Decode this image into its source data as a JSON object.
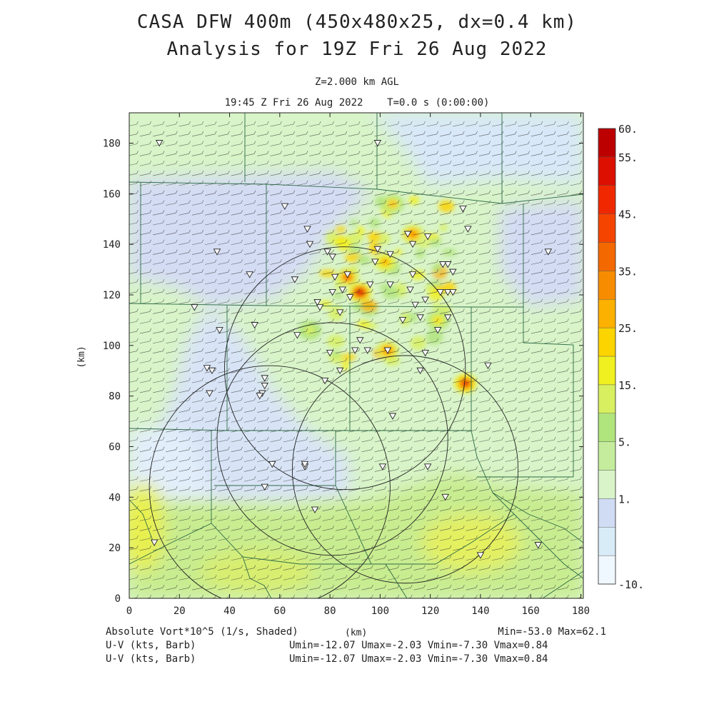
{
  "header": {
    "title_line1": "CASA DFW 400m (450x480x25, dx=0.4 km)",
    "title_line2": "Analysis for 19Z Fri 26 Aug 2022",
    "level": "Z=2.000 km AGL",
    "valid_time": "19:45 Z Fri 26 Aug 2022    T=0.0 s (0:00:00)"
  },
  "axes": {
    "x_ticks": [
      "0",
      "20",
      "40",
      "60",
      "80",
      "100",
      "120",
      "140",
      "160",
      "180"
    ],
    "y_ticks": [
      "0",
      "20",
      "40",
      "60",
      "80",
      "100",
      "120",
      "140",
      "160",
      "180"
    ],
    "x_label": "(km)",
    "y_label": "(km)",
    "x_range_km": [
      0,
      181
    ],
    "y_range_km": [
      0,
      192
    ]
  },
  "colorbar": {
    "labels": [
      "60.",
      "55.",
      "45.",
      "35.",
      "25.",
      "15.",
      "5.",
      "1.",
      "-10."
    ],
    "colors": [
      "#f0f8ff",
      "#d8ecf8",
      "#d0dcf4",
      "#d8f4c8",
      "#c4ec9c",
      "#b0e47c",
      "#d8f060",
      "#f0f020",
      "#fcd400",
      "#fcb000",
      "#f88c00",
      "#f46800",
      "#f44400",
      "#f02800",
      "#dc1000",
      "#bc0000"
    ]
  },
  "footer": {
    "field_label": "Absolute Vort*10^5 (1/s, Shaded)",
    "km_label": "(km)",
    "minmax": "Min=-53.0 Max=62.1",
    "uv_label_1": "U-V (kts, Barb)",
    "uv_stats_1": "Umin=-12.07 Umax=-2.03 Vmin=-7.30 Vmax=0.84",
    "uv_label_2": "U-V (kts, Barb)",
    "uv_stats_2": "Umin=-12.07 Umax=-2.03 Vmin=-7.30 Vmax=0.84"
  },
  "map": {
    "field": "absolute vorticity",
    "radars_km": [
      {
        "x": 86,
        "y": 91,
        "r": 48
      },
      {
        "x": 81,
        "y": 63,
        "r": 46
      },
      {
        "x": 110,
        "y": 51,
        "r": 45
      },
      {
        "x": 56,
        "y": 44,
        "r": 48
      }
    ],
    "vorticity_hotspots": [
      {
        "x": 92,
        "y": 121,
        "value": 60
      },
      {
        "x": 134,
        "y": 85,
        "value": 55
      },
      {
        "x": 103,
        "y": 98,
        "value": 40
      },
      {
        "x": 87,
        "y": 127,
        "value": 45
      },
      {
        "x": 113,
        "y": 144,
        "value": 40
      },
      {
        "x": 105,
        "y": 156,
        "value": 30
      },
      {
        "x": 102,
        "y": 133,
        "value": 35
      },
      {
        "x": 123,
        "y": 110,
        "value": 25
      },
      {
        "x": 72,
        "y": 106,
        "value": 20
      }
    ],
    "stations_km": [
      [
        12,
        180
      ],
      [
        99,
        180
      ],
      [
        62,
        155
      ],
      [
        133,
        154
      ],
      [
        71,
        146
      ],
      [
        135,
        146
      ],
      [
        111,
        144
      ],
      [
        119,
        143
      ],
      [
        113,
        140
      ],
      [
        72,
        140
      ],
      [
        35,
        137
      ],
      [
        79,
        137
      ],
      [
        99,
        138
      ],
      [
        104,
        136
      ],
      [
        81,
        135
      ],
      [
        98,
        133
      ],
      [
        127,
        132
      ],
      [
        125,
        132
      ],
      [
        129,
        129
      ],
      [
        113,
        128
      ],
      [
        82,
        127
      ],
      [
        48,
        128
      ],
      [
        87,
        128
      ],
      [
        96,
        124
      ],
      [
        104,
        124
      ],
      [
        66,
        126
      ],
      [
        85,
        122
      ],
      [
        112,
        122
      ],
      [
        127,
        121
      ],
      [
        129,
        121
      ],
      [
        81,
        121
      ],
      [
        124,
        121
      ],
      [
        88,
        119
      ],
      [
        75,
        117
      ],
      [
        118,
        118
      ],
      [
        26,
        115
      ],
      [
        114,
        116
      ],
      [
        76,
        115
      ],
      [
        84,
        113
      ],
      [
        116,
        111
      ],
      [
        109,
        110
      ],
      [
        127,
        111
      ],
      [
        50,
        108
      ],
      [
        36,
        106
      ],
      [
        67,
        104
      ],
      [
        92,
        102
      ],
      [
        123,
        106
      ],
      [
        80,
        97
      ],
      [
        95,
        98
      ],
      [
        90,
        98
      ],
      [
        118,
        97
      ],
      [
        103,
        98
      ],
      [
        143,
        92
      ],
      [
        31,
        91
      ],
      [
        33,
        90
      ],
      [
        84,
        90
      ],
      [
        116,
        90
      ],
      [
        78,
        86
      ],
      [
        54,
        87
      ],
      [
        54,
        84
      ],
      [
        53,
        81
      ],
      [
        52,
        80
      ],
      [
        32,
        81
      ],
      [
        105,
        72
      ],
      [
        57,
        53
      ],
      [
        70,
        52
      ],
      [
        70,
        53
      ],
      [
        54,
        44
      ],
      [
        101,
        52
      ],
      [
        119,
        52
      ],
      [
        126,
        40
      ],
      [
        74,
        35
      ],
      [
        10,
        22
      ],
      [
        140,
        17
      ],
      [
        163,
        21
      ],
      [
        167,
        137
      ]
    ]
  }
}
